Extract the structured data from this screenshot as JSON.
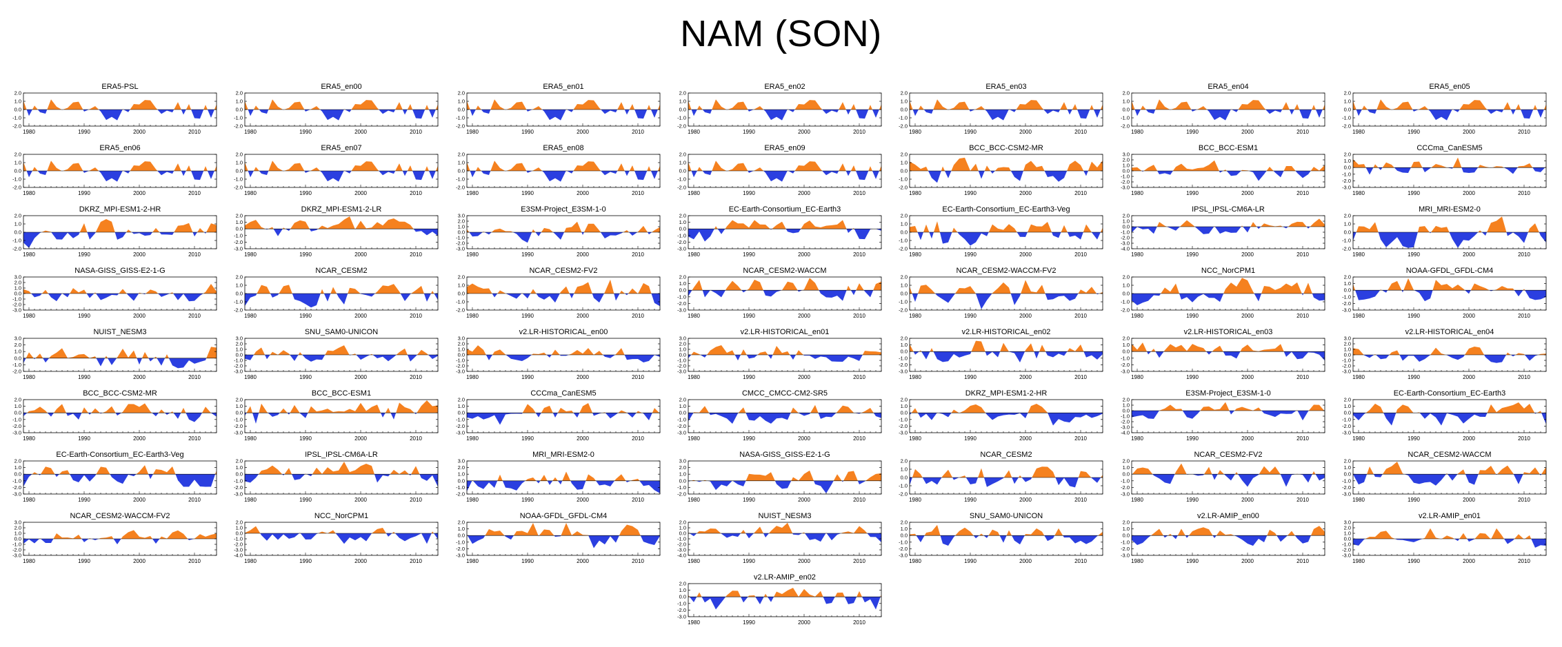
{
  "title": "NAM (SON)",
  "colors": {
    "positive": "#f5811f",
    "negative": "#2b3fe0",
    "axis": "#000000"
  },
  "chart_data": {
    "type": "area",
    "figure_title": "NAM (SON)",
    "x_range": [
      1979,
      2014
    ],
    "x_ticks": [
      "1980",
      "1990",
      "2000",
      "2010"
    ],
    "panels": [
      {
        "title": "ERA5-PSL",
        "y_ticks": [
          "2.0",
          "1.0",
          "0.0",
          "-1.0",
          "-2.0"
        ],
        "ylim": [
          -2,
          2
        ],
        "seed": 11
      },
      {
        "title": "ERA5_en00",
        "y_ticks": [
          "2.0",
          "1.0",
          "0.0",
          "-1.0",
          "-2.0"
        ],
        "ylim": [
          -2,
          2
        ],
        "seed": 11
      },
      {
        "title": "ERA5_en01",
        "y_ticks": [
          "2.0",
          "1.0",
          "0.0",
          "-1.0",
          "-2.0"
        ],
        "ylim": [
          -2,
          2
        ],
        "seed": 11
      },
      {
        "title": "ERA5_en02",
        "y_ticks": [
          "2.0",
          "1.0",
          "0.0",
          "-1.0",
          "-2.0"
        ],
        "ylim": [
          -2,
          2
        ],
        "seed": 11
      },
      {
        "title": "ERA5_en03",
        "y_ticks": [
          "2.0",
          "1.0",
          "0.0",
          "-1.0",
          "-2.0"
        ],
        "ylim": [
          -2,
          2
        ],
        "seed": 11
      },
      {
        "title": "ERA5_en04",
        "y_ticks": [
          "2.0",
          "1.0",
          "0.0",
          "-1.0",
          "-2.0"
        ],
        "ylim": [
          -2,
          2
        ],
        "seed": 11
      },
      {
        "title": "ERA5_en05",
        "y_ticks": [
          "2.0",
          "1.0",
          "0.0",
          "-1.0",
          "-2.0"
        ],
        "ylim": [
          -2,
          2
        ],
        "seed": 11
      },
      {
        "title": "ERA5_en06",
        "y_ticks": [
          "2.0",
          "1.0",
          "0.0",
          "-1.0",
          "-2.0"
        ],
        "ylim": [
          -2,
          2
        ],
        "seed": 11
      },
      {
        "title": "ERA5_en07",
        "y_ticks": [
          "2.0",
          "1.0",
          "0.0",
          "-1.0",
          "-2.0"
        ],
        "ylim": [
          -2,
          2
        ],
        "seed": 11
      },
      {
        "title": "ERA5_en08",
        "y_ticks": [
          "2.0",
          "1.0",
          "0.0",
          "-1.0",
          "-2.0"
        ],
        "ylim": [
          -2,
          2
        ],
        "seed": 11
      },
      {
        "title": "ERA5_en09",
        "y_ticks": [
          "2.0",
          "1.0",
          "0.0",
          "-1.0",
          "-2.0"
        ],
        "ylim": [
          -2,
          2
        ],
        "seed": 11
      },
      {
        "title": "BCC_BCC-CSM2-MR",
        "y_ticks": [
          "2.0",
          "1.0",
          "0.0",
          "-1.0",
          "-2.0"
        ],
        "ylim": [
          -2,
          2
        ],
        "seed": 23
      },
      {
        "title": "BCC_BCC-ESM1",
        "y_ticks": [
          "3.0",
          "2.0",
          "1.0",
          "0.0",
          "-1.0",
          "-2.0",
          "-3.0"
        ],
        "ylim": [
          -3,
          3
        ],
        "seed": 37
      },
      {
        "title": "CCCma_CanESM5",
        "y_ticks": [
          "2.0",
          "1.0",
          "0.0",
          "-1.0",
          "-2.0",
          "-3.0"
        ],
        "ylim": [
          -3,
          2
        ],
        "seed": 41
      },
      {
        "title": "DKRZ_MPI-ESM1-2-HR",
        "y_ticks": [
          "2.0",
          "1.0",
          "0.0",
          "-1.0",
          "-2.0"
        ],
        "ylim": [
          -2,
          2
        ],
        "seed": 53
      },
      {
        "title": "DKRZ_MPI-ESM1-2-LR",
        "y_ticks": [
          "2.0",
          "1.0",
          "0.0",
          "-1.0",
          "-2.0",
          "-3.0"
        ],
        "ylim": [
          -3,
          2
        ],
        "seed": 61
      },
      {
        "title": "E3SM-Project_E3SM-1-0",
        "y_ticks": [
          "3.0",
          "2.0",
          "1.0",
          "0.0",
          "-1.0",
          "-2.0",
          "-3.0"
        ],
        "ylim": [
          -3,
          3
        ],
        "seed": 67
      },
      {
        "title": "EC-Earth-Consortium_EC-Earth3",
        "y_ticks": [
          "2.0",
          "1.0",
          "0.0",
          "-1.0",
          "-2.0",
          "-3.0"
        ],
        "ylim": [
          -3,
          2
        ],
        "seed": 71
      },
      {
        "title": "EC-Earth-Consortium_EC-Earth3-Veg",
        "y_ticks": [
          "2.0",
          "1.0",
          "0.0",
          "-1.0",
          "-2.0"
        ],
        "ylim": [
          -2,
          2
        ],
        "seed": 79
      },
      {
        "title": "IPSL_IPSL-CM6A-LR",
        "y_ticks": [
          "2.0",
          "1.0",
          "0.0",
          "-1.0",
          "-2.0",
          "-3.0",
          "-4.0"
        ],
        "ylim": [
          -4,
          2
        ],
        "seed": 83
      },
      {
        "title": "MRI_MRI-ESM2-0",
        "y_ticks": [
          "2.0",
          "1.0",
          "0.0",
          "-1.0",
          "-2.0"
        ],
        "ylim": [
          -2,
          2
        ],
        "seed": 89
      },
      {
        "title": "NASA-GISS_GISS-E2-1-G",
        "y_ticks": [
          "3.0",
          "2.0",
          "1.0",
          "0.0",
          "-1.0",
          "-2.0",
          "-3.0"
        ],
        "ylim": [
          -3,
          3
        ],
        "seed": 97
      },
      {
        "title": "NCAR_CESM2",
        "y_ticks": [
          "2.0",
          "1.0",
          "0.0",
          "-1.0",
          "-2.0"
        ],
        "ylim": [
          -2,
          2
        ],
        "seed": 101
      },
      {
        "title": "NCAR_CESM2-FV2",
        "y_ticks": [
          "2.0",
          "1.0",
          "0.0",
          "-1.0",
          "-2.0"
        ],
        "ylim": [
          -2,
          2
        ],
        "seed": 103
      },
      {
        "title": "NCAR_CESM2-WACCM",
        "y_ticks": [
          "2.0",
          "1.0",
          "0.0",
          "-1.0",
          "-2.0",
          "-3.0"
        ],
        "ylim": [
          -3,
          2
        ],
        "seed": 107
      },
      {
        "title": "NCAR_CESM2-WACCM-FV2",
        "y_ticks": [
          "2.0",
          "1.0",
          "0.0",
          "-1.0",
          "-2.0"
        ],
        "ylim": [
          -2,
          2
        ],
        "seed": 109
      },
      {
        "title": "NCC_NorCPM1",
        "y_ticks": [
          "2.0",
          "1.0",
          "0.0",
          "-1.0",
          "-2.0"
        ],
        "ylim": [
          -2,
          2
        ],
        "seed": 113
      },
      {
        "title": "NOAA-GFDL_GFDL-CM4",
        "y_ticks": [
          "2.0",
          "1.0",
          "0.0",
          "-1.0",
          "-2.0",
          "-3.0"
        ],
        "ylim": [
          -3,
          2
        ],
        "seed": 127
      },
      {
        "title": "NUIST_NESM3",
        "y_ticks": [
          "3.0",
          "2.0",
          "1.0",
          "0.0",
          "-1.0",
          "-2.0"
        ],
        "ylim": [
          -2,
          3
        ],
        "seed": 131
      },
      {
        "title": "SNU_SAM0-UNICON",
        "y_ticks": [
          "3.0",
          "2.0",
          "1.0",
          "0.0",
          "-1.0",
          "-2.0",
          "-3.0"
        ],
        "ylim": [
          -3,
          3
        ],
        "seed": 137
      },
      {
        "title": "v2.LR-HISTORICAL_en00",
        "y_ticks": [
          "3.0",
          "2.0",
          "1.0",
          "0.0",
          "-1.0",
          "-2.0",
          "-3.0"
        ],
        "ylim": [
          -3,
          3
        ],
        "seed": 139
      },
      {
        "title": "v2.LR-HISTORICAL_en01",
        "y_ticks": [
          "3.0",
          "2.0",
          "1.0",
          "0.0",
          "-1.0",
          "-2.0",
          "-3.0"
        ],
        "ylim": [
          -3,
          3
        ],
        "seed": 149
      },
      {
        "title": "v2.LR-HISTORICAL_en02",
        "y_ticks": [
          "2.0",
          "1.0",
          "0.0",
          "-1.0",
          "-2.0",
          "-3.0"
        ],
        "ylim": [
          -3,
          2
        ],
        "seed": 151
      },
      {
        "title": "v2.LR-HISTORICAL_en03",
        "y_ticks": [
          "2.0",
          "1.0",
          "0.0",
          "-1.0",
          "-2.0",
          "-3.0"
        ],
        "ylim": [
          -3,
          2
        ],
        "seed": 157
      },
      {
        "title": "v2.LR-HISTORICAL_en04",
        "y_ticks": [
          "3.0",
          "2.0",
          "1.0",
          "0.0",
          "-1.0",
          "-2.0",
          "-3.0"
        ],
        "ylim": [
          -3,
          3
        ],
        "seed": 163
      },
      {
        "title": "BCC_BCC-CSM2-MR",
        "y_ticks": [
          "2.0",
          "1.0",
          "0.0",
          "-1.0",
          "-2.0",
          "-3.0"
        ],
        "ylim": [
          -3,
          2
        ],
        "seed": 167
      },
      {
        "title": "BCC_BCC-ESM1",
        "y_ticks": [
          "2.0",
          "1.0",
          "0.0",
          "-1.0",
          "-2.0",
          "-3.0"
        ],
        "ylim": [
          -3,
          2
        ],
        "seed": 173
      },
      {
        "title": "CCCma_CanESM5",
        "y_ticks": [
          "2.0",
          "1.0",
          "0.0",
          "-1.0",
          "-2.0",
          "-3.0"
        ],
        "ylim": [
          -3,
          2
        ],
        "seed": 179
      },
      {
        "title": "CMCC_CMCC-CM2-SR5",
        "y_ticks": [
          "2.0",
          "1.0",
          "0.0",
          "-1.0",
          "-2.0",
          "-3.0"
        ],
        "ylim": [
          -3,
          2
        ],
        "seed": 181
      },
      {
        "title": "DKRZ_MPI-ESM1-2-HR",
        "y_ticks": [
          "2.0",
          "1.0",
          "0.0",
          "-1.0",
          "-2.0",
          "-3.0"
        ],
        "ylim": [
          -3,
          2
        ],
        "seed": 191
      },
      {
        "title": "E3SM-Project_E3SM-1-0",
        "y_ticks": [
          "2.0",
          "1.0",
          "0.0",
          "-1.0",
          "-2.0",
          "-3.0",
          "-4.0"
        ],
        "ylim": [
          -4,
          2
        ],
        "seed": 193
      },
      {
        "title": "EC-Earth-Consortium_EC-Earth3",
        "y_ticks": [
          "2.0",
          "1.0",
          "0.0",
          "-1.0",
          "-2.0",
          "-3.0"
        ],
        "ylim": [
          -3,
          2
        ],
        "seed": 197
      },
      {
        "title": "EC-Earth-Consortium_EC-Earth3-Veg",
        "y_ticks": [
          "2.0",
          "1.0",
          "0.0",
          "-1.0",
          "-2.0",
          "-3.0"
        ],
        "ylim": [
          -3,
          2
        ],
        "seed": 199
      },
      {
        "title": "IPSL_IPSL-CM6A-LR",
        "y_ticks": [
          "2.0",
          "1.0",
          "0.0",
          "-1.0",
          "-2.0",
          "-3.0"
        ],
        "ylim": [
          -3,
          2
        ],
        "seed": 211
      },
      {
        "title": "MRI_MRI-ESM2-0",
        "y_ticks": [
          "3.0",
          "2.0",
          "1.0",
          "0.0",
          "-1.0",
          "-2.0"
        ],
        "ylim": [
          -2,
          3
        ],
        "seed": 223
      },
      {
        "title": "NASA-GISS_GISS-E2-1-G",
        "y_ticks": [
          "3.0",
          "2.0",
          "1.0",
          "0.0",
          "-1.0",
          "-2.0"
        ],
        "ylim": [
          -2,
          3
        ],
        "seed": 227
      },
      {
        "title": "NCAR_CESM2",
        "y_ticks": [
          "2.0",
          "1.0",
          "0.0",
          "-1.0",
          "-2.0"
        ],
        "ylim": [
          -2,
          2
        ],
        "seed": 229
      },
      {
        "title": "NCAR_CESM2-FV2",
        "y_ticks": [
          "2.0",
          "1.0",
          "0.0",
          "-1.0",
          "-2.0",
          "-3.0"
        ],
        "ylim": [
          -3,
          2
        ],
        "seed": 233
      },
      {
        "title": "NCAR_CESM2-WACCM",
        "y_ticks": [
          "2.0",
          "1.0",
          "0.0",
          "-1.0",
          "-2.0",
          "-3.0"
        ],
        "ylim": [
          -3,
          2
        ],
        "seed": 239
      },
      {
        "title": "NCAR_CESM2-WACCM-FV2",
        "y_ticks": [
          "3.0",
          "2.0",
          "1.0",
          "0.0",
          "-1.0",
          "-2.0",
          "-3.0"
        ],
        "ylim": [
          -3,
          3
        ],
        "seed": 241
      },
      {
        "title": "NCC_NorCPM1",
        "y_ticks": [
          "2.0",
          "1.0",
          "0.0",
          "-1.0",
          "-2.0",
          "-3.0",
          "-4.0"
        ],
        "ylim": [
          -4,
          2
        ],
        "seed": 251
      },
      {
        "title": "NOAA-GFDL_GFDL-CM4",
        "y_ticks": [
          "2.0",
          "1.0",
          "0.0",
          "-1.0",
          "-2.0",
          "-3.0"
        ],
        "ylim": [
          -3,
          2
        ],
        "seed": 257
      },
      {
        "title": "NUIST_NESM3",
        "y_ticks": [
          "2.0",
          "1.0",
          "0.0",
          "-1.0",
          "-2.0",
          "-3.0",
          "-4.0"
        ],
        "ylim": [
          -4,
          2
        ],
        "seed": 263
      },
      {
        "title": "SNU_SAM0-UNICON",
        "y_ticks": [
          "2.0",
          "1.0",
          "0.0",
          "-1.0",
          "-2.0",
          "-3.0"
        ],
        "ylim": [
          -3,
          2
        ],
        "seed": 269
      },
      {
        "title": "v2.LR-AMIP_en00",
        "y_ticks": [
          "2.0",
          "1.0",
          "0.0",
          "-1.0",
          "-2.0",
          "-3.0"
        ],
        "ylim": [
          -3,
          2
        ],
        "seed": 271
      },
      {
        "title": "v2.LR-AMIP_en01",
        "y_ticks": [
          "3.0",
          "2.0",
          "1.0",
          "0.0",
          "-1.0",
          "-2.0",
          "-3.0"
        ],
        "ylim": [
          -3,
          3
        ],
        "seed": 277
      },
      {
        "title": "v2.LR-AMIP_en02",
        "y_ticks": [
          "2.0",
          "1.0",
          "0.0",
          "-1.0",
          "-2.0",
          "-3.0"
        ],
        "ylim": [
          -3,
          2
        ],
        "seed": 281
      }
    ]
  }
}
